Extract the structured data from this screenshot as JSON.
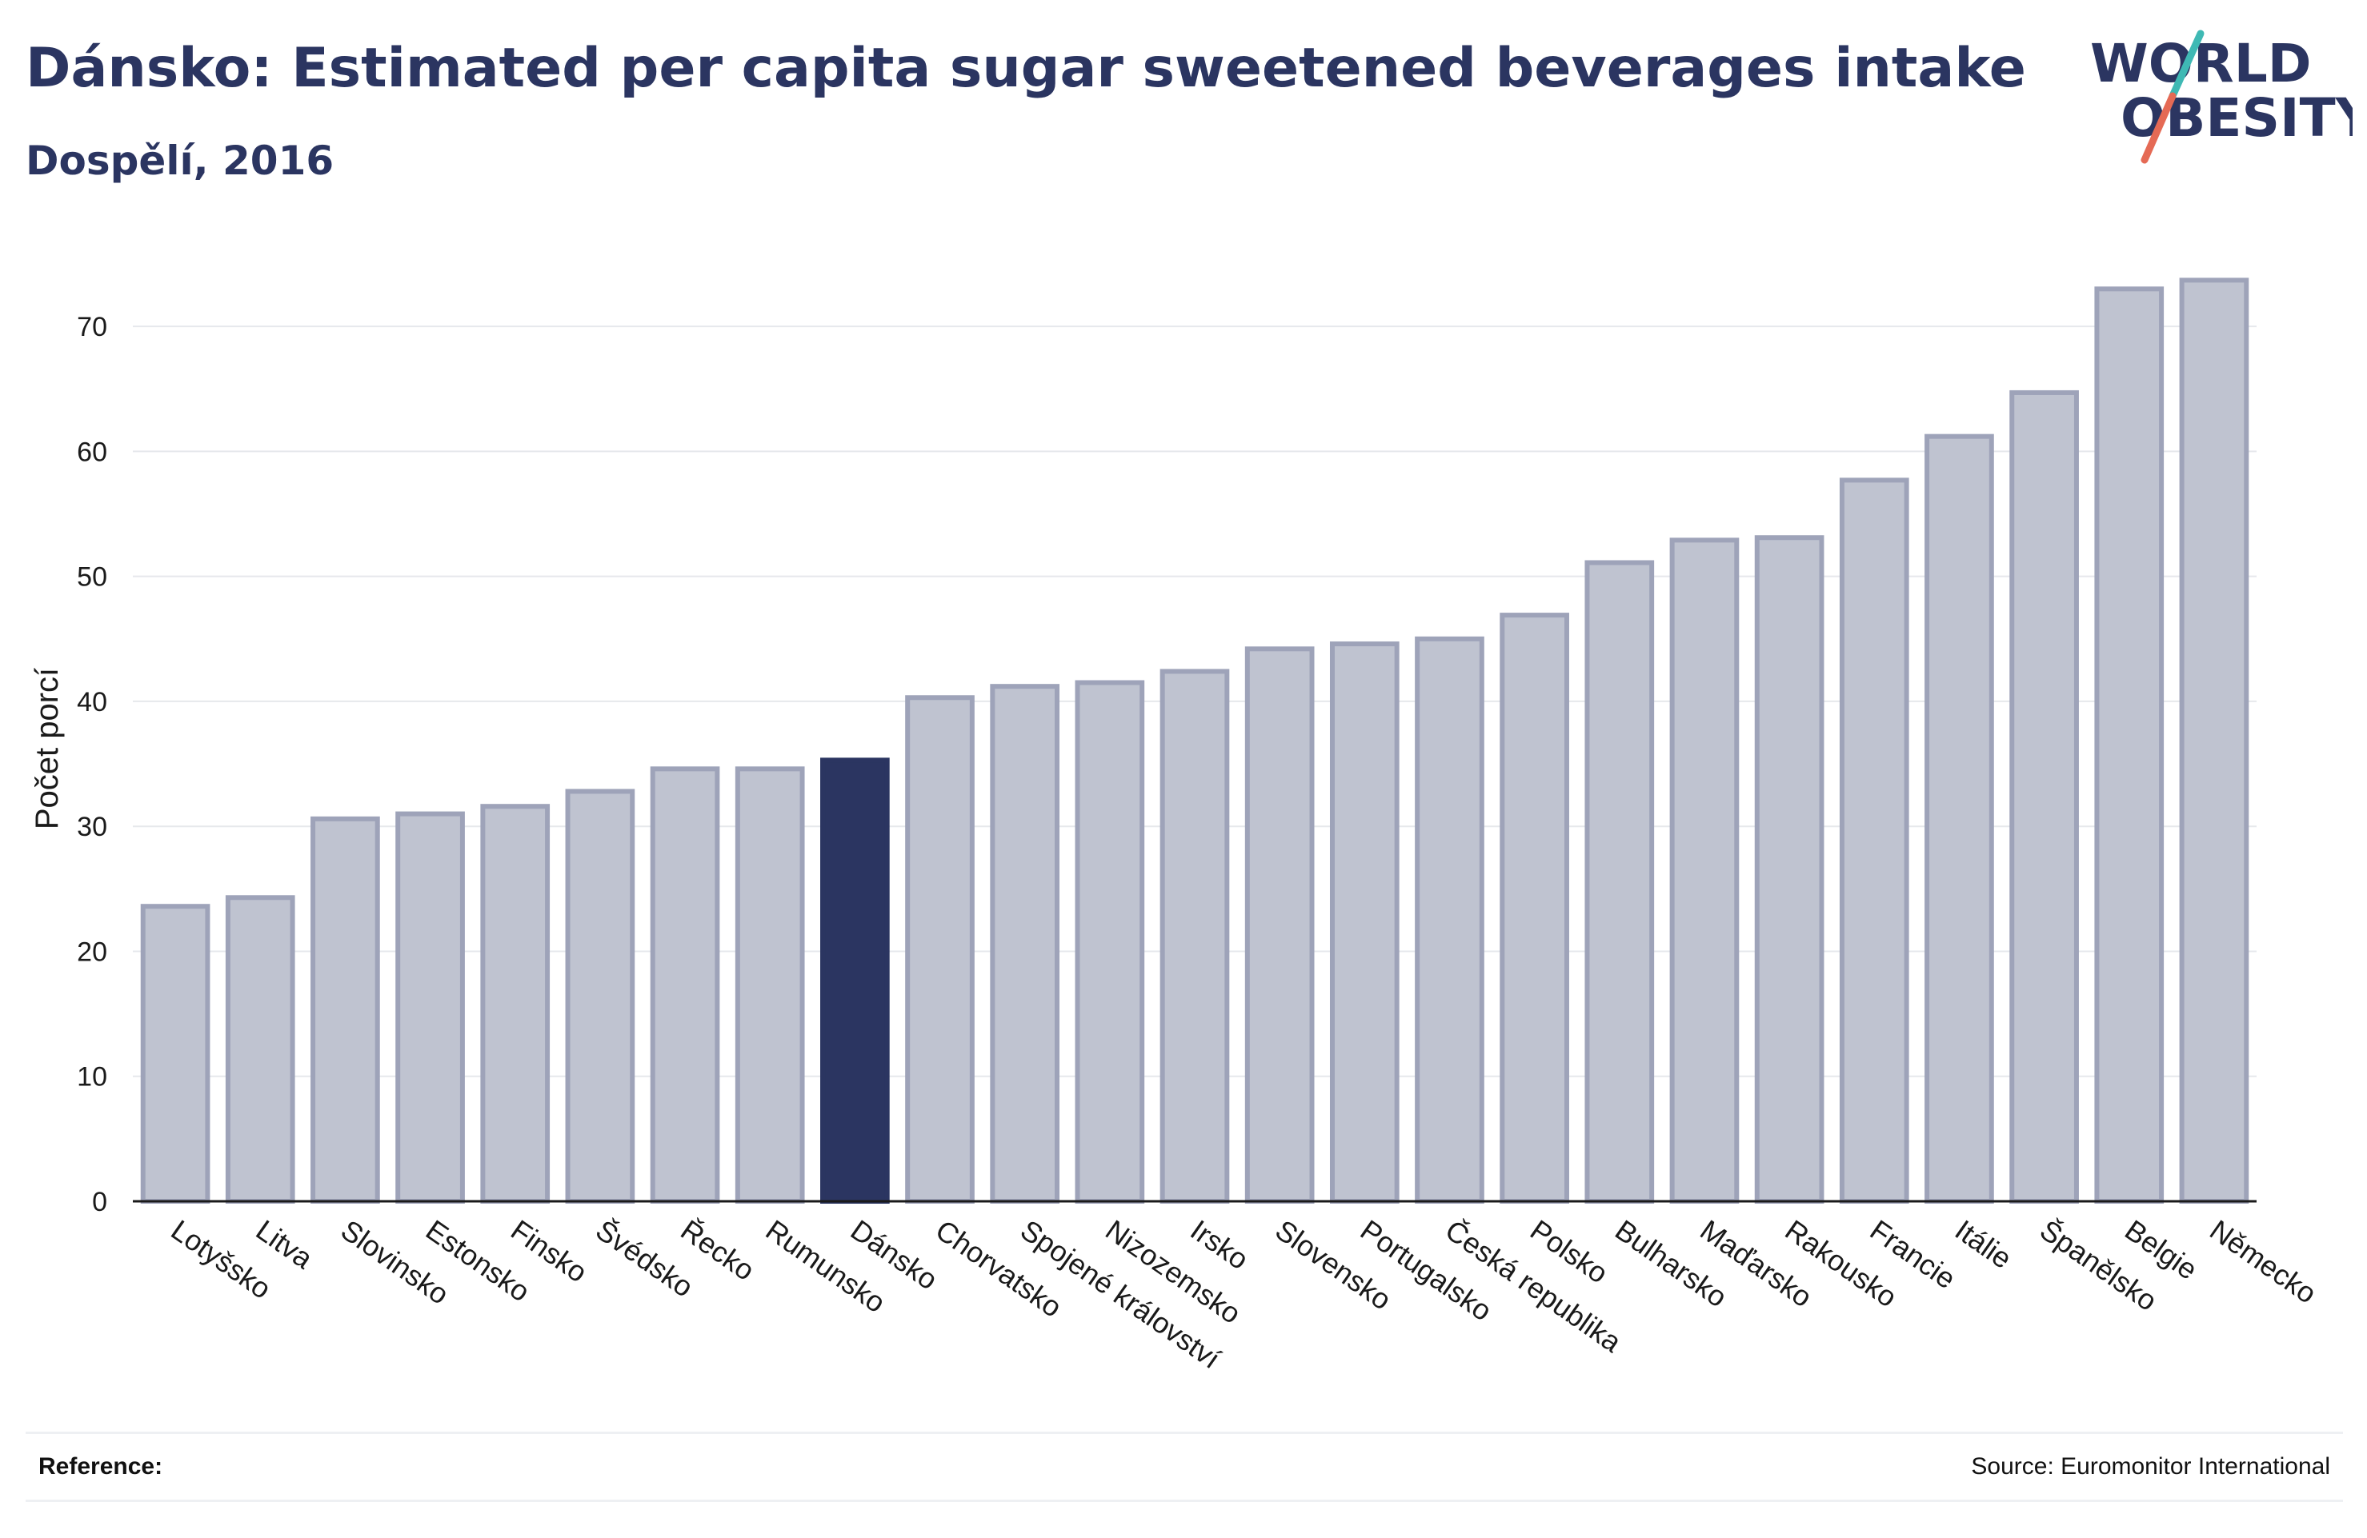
{
  "header": {
    "title": "Dánsko: Estimated per capita sugar sweetened beverages intake",
    "subtitle": "Dospělí, 2016"
  },
  "logo": {
    "line1": "WORLD",
    "line2": "OBESITY",
    "colors": {
      "text": "#2b3561",
      "slash_teal": "#3fb9b4",
      "slash_coral": "#e56a55"
    }
  },
  "footer": {
    "reference_label": "Reference:",
    "source": "Source: Euromonitor International"
  },
  "colors": {
    "bar_default": "#bfc3d0",
    "bar_stroke": "#9ea3b9",
    "bar_highlight": "#2b3561",
    "grid": "#e6e8ec",
    "axis": "#1a1a1a"
  },
  "chart_data": {
    "type": "bar",
    "ylabel": "Počet porcí",
    "xlabel": "",
    "ylim": [
      0,
      75
    ],
    "yticks": [
      0,
      10,
      20,
      30,
      40,
      50,
      60,
      70
    ],
    "grid": true,
    "highlight": "Dánsko",
    "categories": [
      "Lotyšsko",
      "Litva",
      "Slovinsko",
      "Estonsko",
      "Finsko",
      "Švédsko",
      "Řecko",
      "Rumunsko",
      "Dánsko",
      "Chorvatsko",
      "Spojené království",
      "Nizozemsko",
      "Irsko",
      "Slovensko",
      "Portugalsko",
      "Česká republika",
      "Polsko",
      "Bulharsko",
      "Maďarsko",
      "Rakousko",
      "Francie",
      "Itálie",
      "Španělsko",
      "Belgie",
      "Německo"
    ],
    "values": [
      23.6,
      24.3,
      30.6,
      31.0,
      31.6,
      32.8,
      34.6,
      34.6,
      35.3,
      40.3,
      41.2,
      41.5,
      42.4,
      44.2,
      44.6,
      45.0,
      46.9,
      51.1,
      52.9,
      53.1,
      57.7,
      61.2,
      64.7,
      73.0,
      73.7
    ]
  }
}
